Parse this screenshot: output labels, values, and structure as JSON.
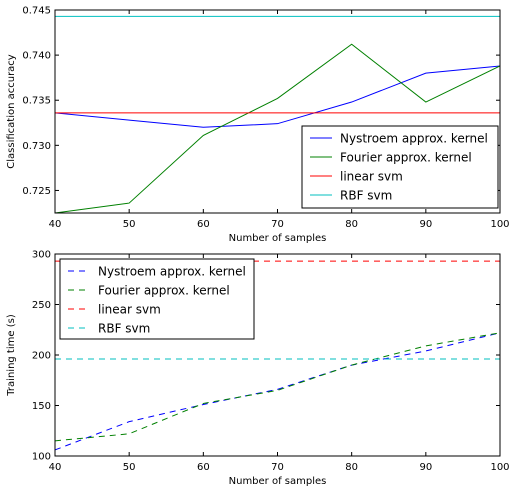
{
  "chart_data": [
    {
      "type": "line",
      "xlabel": "Number of samples",
      "ylabel": "Classification accuracy",
      "xlim": [
        40,
        100
      ],
      "ylim": [
        0.7225,
        0.745
      ],
      "xticks": [
        "40",
        "50",
        "60",
        "70",
        "80",
        "90",
        "100"
      ],
      "yticks": [
        "0.725",
        "0.730",
        "0.735",
        "0.740",
        "0.745"
      ],
      "grid": false,
      "legend_position": "lower-right",
      "x": [
        40,
        50,
        60,
        70,
        80,
        90,
        100
      ],
      "series": [
        {
          "name": "Nystroem approx. kernel",
          "color": "#0000ff",
          "dash": "solid",
          "values": [
            0.7336,
            0.7328,
            0.732,
            0.7324,
            0.7348,
            0.738,
            0.7388
          ]
        },
        {
          "name": "Fourier approx. kernel",
          "color": "#008000",
          "dash": "solid",
          "values": [
            0.7225,
            0.7236,
            0.7311,
            0.7352,
            0.7412,
            0.7348,
            0.7388
          ]
        },
        {
          "name": "linear svm",
          "color": "#ff0000",
          "dash": "solid",
          "values": [
            0.7336,
            0.7336,
            0.7336,
            0.7336,
            0.7336,
            0.7336,
            0.7336
          ]
        },
        {
          "name": "RBF svm",
          "color": "#00bfbf",
          "dash": "solid",
          "values": [
            0.7443,
            0.7443,
            0.7443,
            0.7443,
            0.7443,
            0.7443,
            0.7443
          ]
        }
      ]
    },
    {
      "type": "line",
      "xlabel": "Number of samples",
      "ylabel": "Training time (s)",
      "xlim": [
        40,
        100
      ],
      "ylim": [
        100,
        300
      ],
      "xticks": [
        "40",
        "50",
        "60",
        "70",
        "80",
        "90",
        "100"
      ],
      "yticks": [
        "100",
        "150",
        "200",
        "250",
        "300"
      ],
      "grid": false,
      "legend_position": "upper-left",
      "x": [
        40,
        50,
        60,
        70,
        80,
        90,
        100
      ],
      "series": [
        {
          "name": "Nystroem approx. kernel",
          "color": "#0000ff",
          "dash": "dashed",
          "values": [
            106,
            134,
            151,
            166,
            190,
            204,
            222
          ]
        },
        {
          "name": "Fourier approx. kernel",
          "color": "#008000",
          "dash": "dashed",
          "values": [
            115,
            122,
            152,
            165,
            190,
            209,
            222
          ]
        },
        {
          "name": "linear svm",
          "color": "#ff0000",
          "dash": "dashed",
          "values": [
            293,
            293,
            293,
            293,
            293,
            293,
            293
          ]
        },
        {
          "name": "RBF svm",
          "color": "#00bfbf",
          "dash": "dashed",
          "values": [
            196,
            196,
            196,
            196,
            196,
            196,
            196
          ]
        }
      ]
    }
  ]
}
